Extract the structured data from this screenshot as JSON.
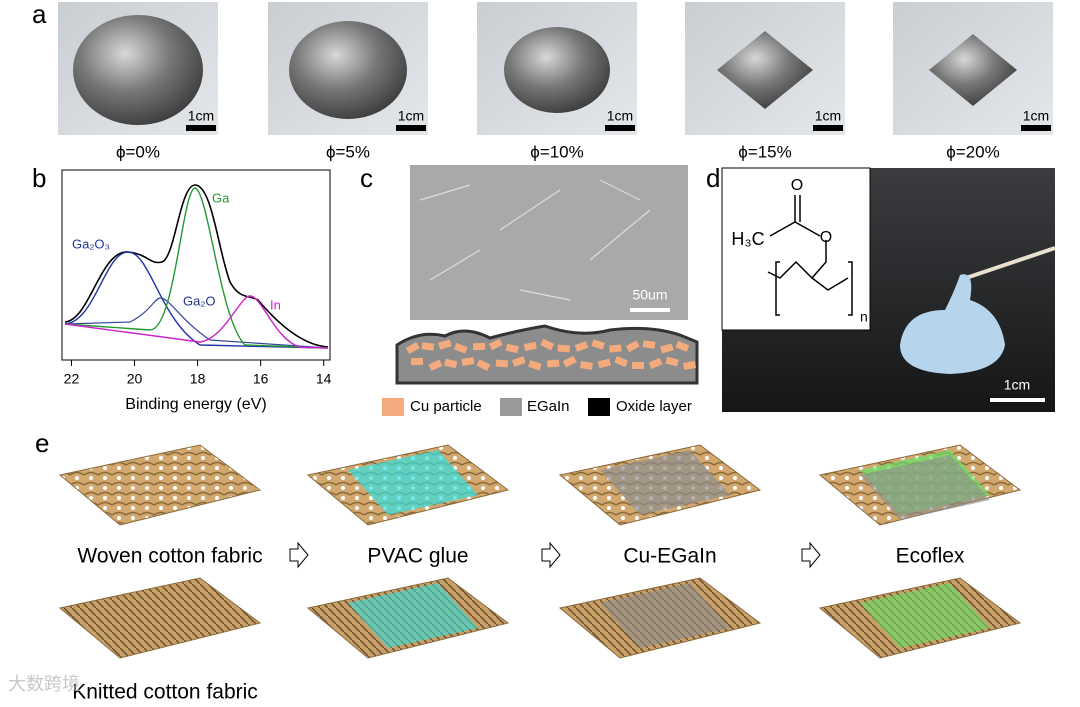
{
  "panels": {
    "a": {
      "label": "a",
      "samples": [
        "ϕ=0%",
        "ϕ=5%",
        "ϕ=10%",
        "ϕ=15%",
        "ϕ=20%"
      ],
      "scale_bar": "1cm"
    },
    "b": {
      "label": "b",
      "x_label": "Binding energy (eV)",
      "xlim": [
        22.3,
        13.8
      ],
      "xticks": [
        22,
        20,
        18,
        16,
        14
      ],
      "peaks": [
        "Ga₂O₃",
        "Ga",
        "Ga₂O",
        "In"
      ]
    },
    "c": {
      "label": "c",
      "scale_bar": "50um",
      "legend": [
        "Cu particle",
        "EGaIn",
        "Oxide layer"
      ]
    },
    "d": {
      "label": "d",
      "structure": {
        "methyl": "H₃C",
        "carbonyl_o": "O",
        "ester_o": "O",
        "repeat": "n"
      },
      "scale_bar": "1cm"
    },
    "e": {
      "label": "e",
      "steps": [
        "PVAC glue",
        "Cu-EGaIn",
        "Ecoflex"
      ],
      "fabrics": [
        "Woven cotton fabric",
        "Knitted cotton fabric"
      ]
    },
    "watermark": "大数跨境"
  }
}
